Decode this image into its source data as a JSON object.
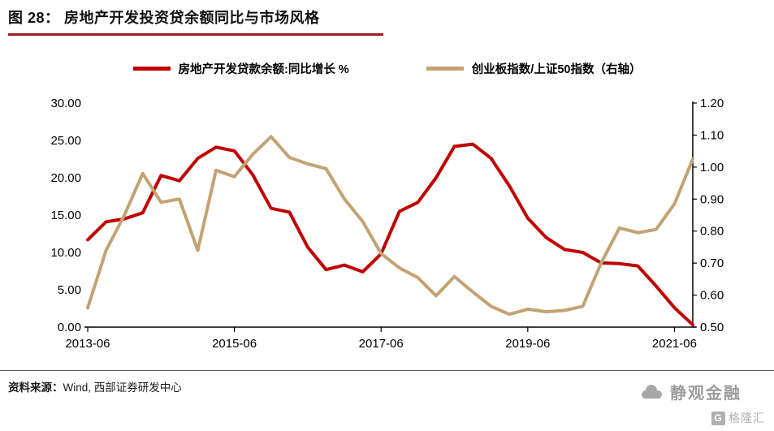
{
  "title": {
    "text": "图 28：  房地产开发投资贷余额同比与市场风格"
  },
  "accent_colors": {
    "title_underline": "#9E1B23",
    "loan_line": "#C00000",
    "ratio_line": "#C3A273"
  },
  "legend": [
    {
      "label": "房地产开发贷款余额:同比增长 %",
      "color": "#C00000"
    },
    {
      "label": "创业板指数/上证50指数（右轴）",
      "color": "#C3A273"
    }
  ],
  "footer": {
    "source_label": "资料来源：",
    "source_text": "Wind, 西部证券研发中心"
  },
  "watermark": {
    "brand": "静观金融",
    "logo_letter": "G",
    "logo_text": "格隆汇"
  },
  "chart_data": {
    "type": "line",
    "title": "房地产开发投资贷余额同比与市场风格",
    "x": [
      "2013-06",
      "2013-09",
      "2013-12",
      "2014-03",
      "2014-06",
      "2014-09",
      "2014-12",
      "2015-03",
      "2015-06",
      "2015-09",
      "2015-12",
      "2016-03",
      "2016-06",
      "2016-09",
      "2016-12",
      "2017-03",
      "2017-06",
      "2017-09",
      "2017-12",
      "2018-03",
      "2018-06",
      "2018-09",
      "2018-12",
      "2019-03",
      "2019-06",
      "2019-09",
      "2019-12",
      "2020-03",
      "2020-06",
      "2020-09",
      "2020-12",
      "2021-03",
      "2021-06",
      "2021-09"
    ],
    "series": [
      {
        "name": "房地产开发贷款余额:同比增长 %",
        "axis": "left",
        "color": "#C00000",
        "width": 4,
        "values": [
          11.7,
          14.1,
          14.5,
          15.3,
          20.3,
          19.6,
          22.6,
          24.1,
          23.6,
          20.4,
          15.9,
          15.4,
          10.7,
          7.7,
          8.3,
          7.4,
          9.8,
          15.5,
          16.7,
          20.0,
          24.2,
          24.5,
          22.6,
          18.9,
          14.6,
          12.0,
          10.4,
          10.0,
          8.6,
          8.5,
          8.2,
          5.5,
          2.6,
          0.3
        ]
      },
      {
        "name": "创业板指数/上证50指数（右轴）",
        "axis": "right",
        "color": "#C3A273",
        "width": 4,
        "values": [
          0.56,
          0.74,
          0.85,
          0.98,
          0.89,
          0.9,
          0.74,
          0.99,
          0.97,
          1.04,
          1.095,
          1.03,
          1.01,
          0.995,
          0.9,
          0.83,
          0.73,
          0.685,
          0.655,
          0.598,
          0.658,
          0.61,
          0.565,
          0.54,
          0.556,
          0.548,
          0.552,
          0.565,
          0.7,
          0.81,
          0.795,
          0.805,
          0.885,
          1.025
        ]
      }
    ],
    "left_axis": {
      "min": 0,
      "max": 30,
      "step": 5,
      "decimals": 2,
      "tick_labels": [
        "0.00",
        "5.00",
        "10.00",
        "15.00",
        "20.00",
        "25.00",
        "30.00"
      ]
    },
    "right_axis": {
      "min": 0.5,
      "max": 1.2,
      "step": 0.1,
      "decimals": 2,
      "tick_labels": [
        "0.50",
        "0.60",
        "0.70",
        "0.80",
        "0.90",
        "1.00",
        "1.10",
        "1.20"
      ]
    },
    "x_tick_labels": [
      "2013-06",
      "2015-06",
      "2017-06",
      "2019-06",
      "2021-06"
    ],
    "x_tick_indices": [
      0,
      8,
      16,
      24,
      32
    ],
    "grid": false,
    "legend_position": "top"
  }
}
